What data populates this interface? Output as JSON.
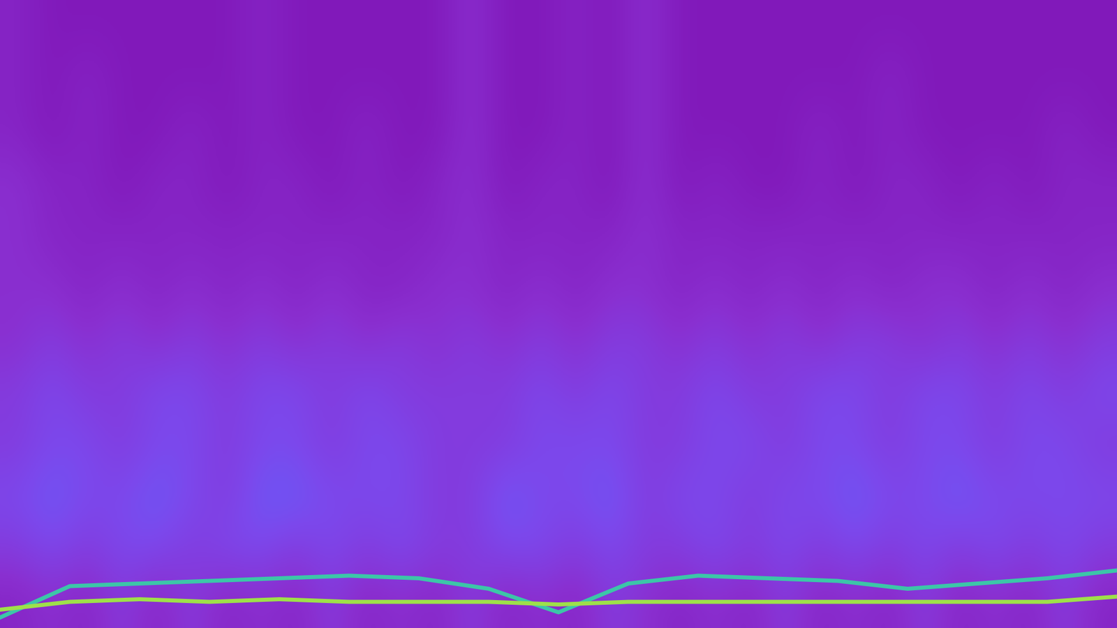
{
  "chart_data": {
    "type": "heatmap",
    "tick_labels": false,
    "xlim": [
      0,
      32
    ],
    "ylim": [
      0,
      12
    ],
    "zlim": [
      0,
      10
    ],
    "cells": [
      [
        2,
        1,
        1,
        1,
        1,
        1,
        1,
        2,
        1,
        1,
        1,
        1,
        1,
        3,
        1,
        1,
        2,
        1,
        3,
        1,
        1,
        1,
        1,
        1,
        1,
        1,
        1,
        1,
        1,
        1,
        1,
        1
      ],
      [
        2,
        1,
        2,
        1,
        1,
        1,
        1,
        2,
        1,
        1,
        1,
        1,
        1,
        3,
        1,
        1,
        2,
        1,
        3,
        1,
        1,
        1,
        1,
        1,
        1,
        2,
        1,
        1,
        1,
        1,
        1,
        1
      ],
      [
        2,
        1,
        2,
        1,
        1,
        2,
        1,
        2,
        1,
        1,
        2,
        1,
        1,
        3,
        1,
        1,
        2,
        1,
        3,
        1,
        1,
        1,
        1,
        2,
        1,
        2,
        1,
        1,
        1,
        1,
        2,
        1
      ],
      [
        3,
        2,
        2,
        1,
        2,
        2,
        1,
        2,
        2,
        1,
        2,
        1,
        2,
        3,
        1,
        2,
        2,
        1,
        3,
        1,
        2,
        1,
        1,
        2,
        1,
        2,
        2,
        1,
        2,
        1,
        2,
        2
      ],
      [
        3,
        2,
        2,
        2,
        2,
        2,
        2,
        2,
        2,
        2,
        2,
        2,
        2,
        3,
        2,
        2,
        2,
        2,
        3,
        2,
        2,
        2,
        2,
        2,
        2,
        2,
        2,
        2,
        2,
        2,
        2,
        2
      ],
      [
        3,
        3,
        2,
        3,
        2,
        3,
        2,
        3,
        2,
        3,
        2,
        2,
        3,
        3,
        2,
        3,
        2,
        3,
        3,
        2,
        3,
        2,
        3,
        2,
        3,
        2,
        3,
        3,
        2,
        3,
        2,
        3
      ],
      [
        3,
        4,
        3,
        4,
        3,
        4,
        3,
        4,
        3,
        4,
        3,
        4,
        3,
        4,
        3,
        4,
        3,
        4,
        4,
        3,
        4,
        3,
        4,
        3,
        4,
        4,
        3,
        4,
        3,
        4,
        3,
        4
      ],
      [
        4,
        5,
        4,
        4,
        5,
        5,
        4,
        5,
        5,
        4,
        5,
        4,
        4,
        4,
        4,
        5,
        4,
        5,
        4,
        4,
        5,
        4,
        4,
        5,
        5,
        4,
        5,
        5,
        4,
        5,
        4,
        5
      ],
      [
        4,
        5,
        5,
        4,
        5,
        5,
        4,
        5,
        5,
        4,
        5,
        5,
        4,
        4,
        4,
        5,
        5,
        5,
        4,
        4,
        5,
        5,
        4,
        5,
        5,
        4,
        5,
        5,
        4,
        5,
        5,
        4
      ],
      [
        5,
        6,
        5,
        5,
        6,
        5,
        4,
        6,
        6,
        5,
        5,
        5,
        4,
        4,
        6,
        5,
        5,
        6,
        4,
        5,
        5,
        4,
        5,
        5,
        6,
        5,
        5,
        6,
        5,
        5,
        5,
        5
      ],
      [
        4,
        5,
        4,
        5,
        5,
        4,
        5,
        5,
        4,
        5,
        4,
        5,
        4,
        4,
        5,
        5,
        4,
        5,
        4,
        4,
        5,
        4,
        5,
        4,
        5,
        4,
        5,
        4,
        5,
        4,
        5,
        4
      ],
      [
        2,
        3,
        2,
        4,
        2,
        4,
        2,
        3,
        2,
        4,
        2,
        3,
        2,
        4,
        2,
        3,
        2,
        4,
        3,
        2,
        3,
        2,
        4,
        2,
        3,
        2,
        4,
        2,
        3,
        2,
        4,
        2
      ]
    ],
    "x": [
      0,
      2,
      4,
      6,
      8,
      10,
      12,
      14,
      16,
      18,
      20,
      22,
      24,
      26,
      28,
      30,
      32
    ],
    "series": [
      {
        "type": "line",
        "color": "#3cc6a8",
        "values": [
          0.2,
          0.8,
          0.85,
          0.9,
          0.95,
          1.0,
          0.95,
          0.75,
          0.3,
          0.85,
          1.0,
          0.95,
          0.9,
          0.75,
          0.85,
          0.95,
          1.1
        ]
      },
      {
        "type": "line",
        "color": "#9ee04a",
        "values": [
          0.35,
          0.5,
          0.55,
          0.5,
          0.55,
          0.5,
          0.5,
          0.5,
          0.45,
          0.5,
          0.5,
          0.5,
          0.5,
          0.5,
          0.5,
          0.5,
          0.6
        ]
      }
    ]
  }
}
